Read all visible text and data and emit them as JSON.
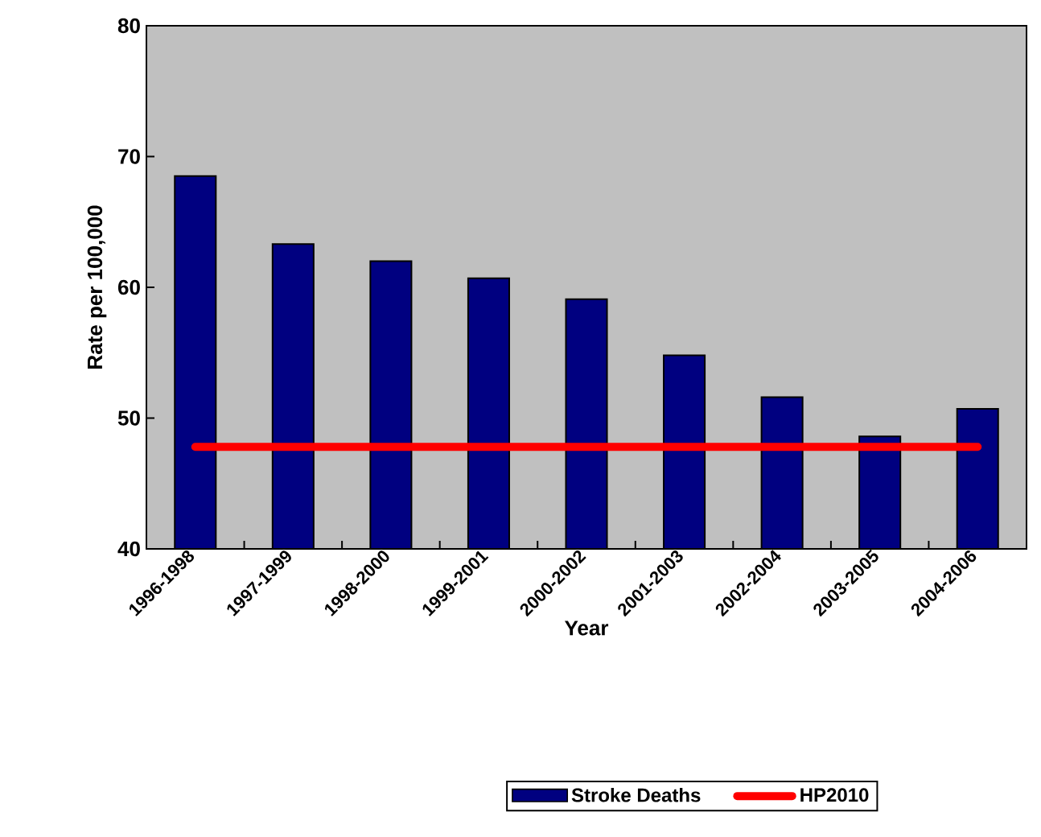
{
  "chart_data": {
    "type": "bar",
    "xlabel": "Year",
    "ylabel": "Rate per 100,000",
    "categories": [
      "1996-1998",
      "1997-1999",
      "1998-2000",
      "1999-2001",
      "2000-2002",
      "2001-2003",
      "2002-2004",
      "2003-2005",
      "2004-2006"
    ],
    "series": [
      {
        "name": "Stroke Deaths",
        "color": "#000080",
        "values": [
          68.5,
          63.3,
          62.0,
          60.7,
          59.1,
          54.8,
          51.6,
          48.6,
          50.7
        ]
      },
      {
        "name": "HP2010",
        "type": "line",
        "color": "#ff0000",
        "values": [
          47.8,
          47.8,
          47.8,
          47.8,
          47.8,
          47.8,
          47.8,
          47.8,
          47.8
        ]
      }
    ],
    "ylim": [
      40,
      80
    ],
    "yticks": [
      40,
      50,
      60,
      70,
      80
    ],
    "legend": "bottom"
  }
}
